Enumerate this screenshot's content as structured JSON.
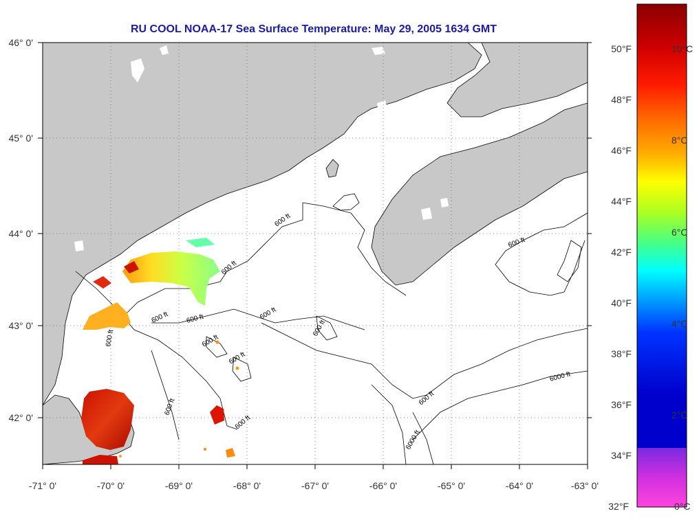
{
  "title": "RU COOL  NOAA-17  Sea Surface Temperature:  May 29, 2005 1634 GMT",
  "map": {
    "lon_ticks": [
      "-71° 0'",
      "-70° 0'",
      "-69° 0'",
      "-68° 0'",
      "-67° 0'",
      "-66° 0'",
      "-65° 0'",
      "-64° 0'",
      "-63° 0'"
    ],
    "lat_ticks": [
      "46° 0'",
      "45° 0'",
      "44° 0'",
      "43° 0'",
      "42° 0'"
    ],
    "land_color": "#c8c8c8",
    "ocean_color": "#ffffff",
    "contour_labels": [
      "600 ft",
      "600 ft",
      "600 ft",
      "600 ft",
      "600 ft",
      "600 ft",
      "600 ft",
      "600 ft",
      "600 ft",
      "600 ft",
      "600 ft",
      "600 ft",
      "6000 ft",
      "6000 ft",
      "600 ft"
    ]
  },
  "colorbar": {
    "fahrenheit_labels": [
      "50°F",
      "48°F",
      "46°F",
      "44°F",
      "42°F",
      "40°F",
      "38°F",
      "36°F",
      "34°F",
      "32°F"
    ],
    "celsius_labels": [
      "10°C",
      "8°C",
      "6°C",
      "4°C",
      "2°C",
      "0°C"
    ]
  }
}
